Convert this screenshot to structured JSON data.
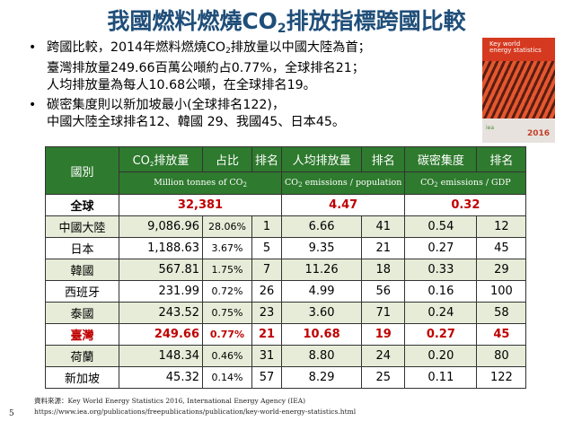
{
  "title": {
    "pre": "我國燃料燃燒CO",
    "sub": "2",
    "post": "排放指標跨國比較"
  },
  "bullets": [
    {
      "pre": "跨國比較，2014年燃料燃燒CO",
      "sub": "2",
      "post": "排放量以中國大陸為首；",
      "line2": "臺灣排放量249.66百萬公噸約占0.77%，全球排名21；",
      "line3": "人均排放量為每人10.68公噸，在全球排名19。"
    },
    {
      "line1": "碳密集度則以新加坡最小(全球排名122)，",
      "line2": "中國大陸全球排名12、韓國 29、我國45、日本45。"
    }
  ],
  "cover": {
    "title_lines": [
      "Key world",
      "energy statistics"
    ],
    "publisher": "iea",
    "year": "2016"
  },
  "table": {
    "country_header": "國別",
    "headers": [
      {
        "pre": "CO",
        "sub": "2",
        "post": "排放量"
      },
      {
        "pre": "占比",
        "sub": "",
        "post": ""
      },
      {
        "pre": "排名",
        "sub": "",
        "post": ""
      },
      {
        "pre": "人均排放量",
        "sub": "",
        "post": ""
      },
      {
        "pre": "排名",
        "sub": "",
        "post": ""
      },
      {
        "pre": "碳密集度",
        "sub": "",
        "post": ""
      },
      {
        "pre": "排名",
        "sub": "",
        "post": ""
      }
    ],
    "units": [
      {
        "pre": "Million tonnes of CO",
        "sub": "2",
        "post": ""
      },
      {
        "pre": "CO",
        "sub": "2",
        "post": " emissions / population"
      },
      {
        "pre": "CO",
        "sub": "2",
        "post": " emissions  / GDP"
      }
    ],
    "world": {
      "label": "全球",
      "total": "32,381",
      "per_capita": "4.47",
      "intensity": "0.32"
    },
    "rows": [
      {
        "country": "中國大陸",
        "emissions": "9,086.96",
        "share": "28.06%",
        "rank1": "1",
        "per_capita": "6.66",
        "rank2": "41",
        "intensity": "0.54",
        "rank3": "12"
      },
      {
        "country": "日本",
        "emissions": "1,188.63",
        "share": "3.67%",
        "rank1": "5",
        "per_capita": "9.35",
        "rank2": "21",
        "intensity": "0.27",
        "rank3": "45"
      },
      {
        "country": "韓國",
        "emissions": "567.81",
        "share": "1.75%",
        "rank1": "7",
        "per_capita": "11.26",
        "rank2": "18",
        "intensity": "0.33",
        "rank3": "29"
      },
      {
        "country": "西班牙",
        "emissions": "231.99",
        "share": "0.72%",
        "rank1": "26",
        "per_capita": "4.99",
        "rank2": "56",
        "intensity": "0.16",
        "rank3": "100"
      },
      {
        "country": "泰國",
        "emissions": "243.52",
        "share": "0.75%",
        "rank1": "23",
        "per_capita": "3.60",
        "rank2": "71",
        "intensity": "0.24",
        "rank3": "58"
      },
      {
        "country": "臺灣",
        "emissions": "249.66",
        "share": "0.77%",
        "rank1": "21",
        "per_capita": "10.68",
        "rank2": "19",
        "intensity": "0.27",
        "rank3": "45"
      },
      {
        "country": "荷蘭",
        "emissions": "148.34",
        "share": "0.46%",
        "rank1": "31",
        "per_capita": "8.80",
        "rank2": "24",
        "intensity": "0.20",
        "rank3": "80"
      },
      {
        "country": "新加坡",
        "emissions": "45.32",
        "share": "0.14%",
        "rank1": "57",
        "per_capita": "8.29",
        "rank2": "25",
        "intensity": "0.11",
        "rank3": "122"
      }
    ],
    "highlight_color": "#c00000",
    "header_color": "#2e7a2e",
    "row_color": "#e6ecd8"
  },
  "source": {
    "line1": "資料來源：Key World Energy Statistics 2016, International Energy Agency (IEA)",
    "line2": "https://www.iea.org/publications/freepublications/publication/key-world-energy-statistics.html"
  },
  "page_number": "5"
}
